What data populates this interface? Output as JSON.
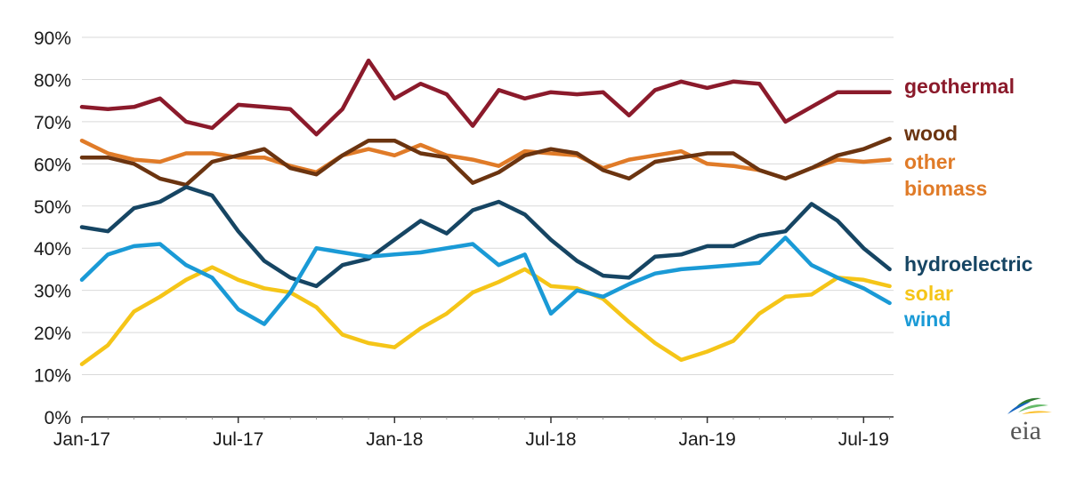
{
  "chart_data": {
    "type": "line",
    "title": "",
    "xlabel": "",
    "ylabel": "",
    "ylim": [
      0,
      90
    ],
    "yticks": [
      0,
      10,
      20,
      30,
      40,
      50,
      60,
      70,
      80,
      90
    ],
    "ytick_labels": [
      "0%",
      "10%",
      "20%",
      "30%",
      "40%",
      "50%",
      "60%",
      "70%",
      "80%",
      "90%"
    ],
    "xtick_labels": [
      "Jan-17",
      "Jul-17",
      "Jan-18",
      "Jul-18",
      "Jan-19",
      "Jul-19"
    ],
    "xtick_index": [
      0,
      6,
      12,
      18,
      24,
      30
    ],
    "x": [
      "Jan-17",
      "Feb-17",
      "Mar-17",
      "Apr-17",
      "May-17",
      "Jun-17",
      "Jul-17",
      "Aug-17",
      "Sep-17",
      "Oct-17",
      "Nov-17",
      "Dec-17",
      "Jan-18",
      "Feb-18",
      "Mar-18",
      "Apr-18",
      "May-18",
      "Jun-18",
      "Jul-18",
      "Aug-18",
      "Sep-18",
      "Oct-18",
      "Nov-18",
      "Dec-18",
      "Jan-19",
      "Feb-19",
      "Mar-19",
      "Apr-19",
      "May-19",
      "Jun-19",
      "Jul-19",
      "Aug-19"
    ],
    "grid": true,
    "series": [
      {
        "name": "geothermal",
        "color": "#8b1a2b",
        "values": [
          73.5,
          73,
          73.5,
          75.5,
          70,
          68.5,
          74,
          73.5,
          73,
          67,
          73,
          84.5,
          75.5,
          79,
          76.5,
          69,
          77.5,
          75.5,
          77,
          76.5,
          77,
          71.5,
          77.5,
          79.5,
          78,
          79.5,
          79,
          70,
          73.5,
          77,
          77,
          77
        ]
      },
      {
        "name": "wood",
        "color": "#6b3410",
        "values": [
          61.5,
          61.5,
          60,
          56.5,
          55,
          60.5,
          62,
          63.5,
          59,
          57.5,
          62,
          65.5,
          65.5,
          62.5,
          61.5,
          55.5,
          58,
          62,
          63.5,
          62.5,
          58.5,
          56.5,
          60.5,
          61.5,
          62.5,
          62.5,
          58.5,
          56.5,
          59,
          62,
          63.5,
          66
        ]
      },
      {
        "name": "other biomass",
        "color": "#e07b28",
        "values": [
          65.5,
          62.5,
          61,
          60.5,
          62.5,
          62.5,
          61.5,
          61.5,
          59.5,
          58,
          62,
          63.5,
          62,
          64.5,
          62,
          61,
          59.5,
          63,
          62.5,
          62,
          59,
          61,
          62,
          63,
          60,
          59.5,
          58.5,
          56.5,
          59,
          61,
          60.5,
          61
        ]
      },
      {
        "name": "hydroelectric",
        "color": "#164563",
        "values": [
          45,
          44,
          49.5,
          51,
          54.5,
          52.5,
          44,
          37,
          33,
          31,
          36,
          37.5,
          42,
          46.5,
          43.5,
          49,
          51,
          48,
          42,
          37,
          33.5,
          33,
          38,
          38.5,
          40.5,
          40.5,
          43,
          44,
          50.5,
          46.5,
          40,
          35
        ]
      },
      {
        "name": "solar",
        "color": "#f5c518",
        "values": [
          12.5,
          17,
          25,
          28.5,
          32.5,
          35.5,
          32.5,
          30.5,
          29.5,
          26,
          19.5,
          17.5,
          16.5,
          21,
          24.5,
          29.5,
          32,
          35,
          31,
          30.5,
          28,
          22.5,
          17.5,
          13.5,
          15.5,
          18,
          24.5,
          28.5,
          29,
          33,
          32.5,
          31
        ]
      },
      {
        "name": "wind",
        "color": "#1a9ad6",
        "values": [
          32.5,
          38.5,
          40.5,
          41,
          36,
          33,
          25.5,
          22,
          29.5,
          40,
          39,
          38,
          38.5,
          39,
          40,
          41,
          36,
          38.5,
          24.5,
          30,
          28.5,
          31.5,
          34,
          35,
          35.5,
          36,
          36.5,
          42.5,
          36,
          33,
          30.5,
          27
        ]
      }
    ],
    "annotations": [
      {
        "series": "geothermal",
        "lines": [
          "geothermal"
        ]
      },
      {
        "series": "wood",
        "lines": [
          "wood"
        ]
      },
      {
        "series": "other biomass",
        "lines": [
          "other",
          "biomass"
        ]
      },
      {
        "series": "hydroelectric",
        "lines": [
          "hydroelectric"
        ]
      },
      {
        "series": "solar",
        "lines": [
          "solar"
        ]
      },
      {
        "series": "wind",
        "lines": [
          "wind"
        ]
      }
    ]
  },
  "logo": {
    "text": "eia",
    "leaf_colors": [
      "#2e7d32",
      "#66bb6a",
      "#1565c0",
      "#fbc02d"
    ]
  }
}
